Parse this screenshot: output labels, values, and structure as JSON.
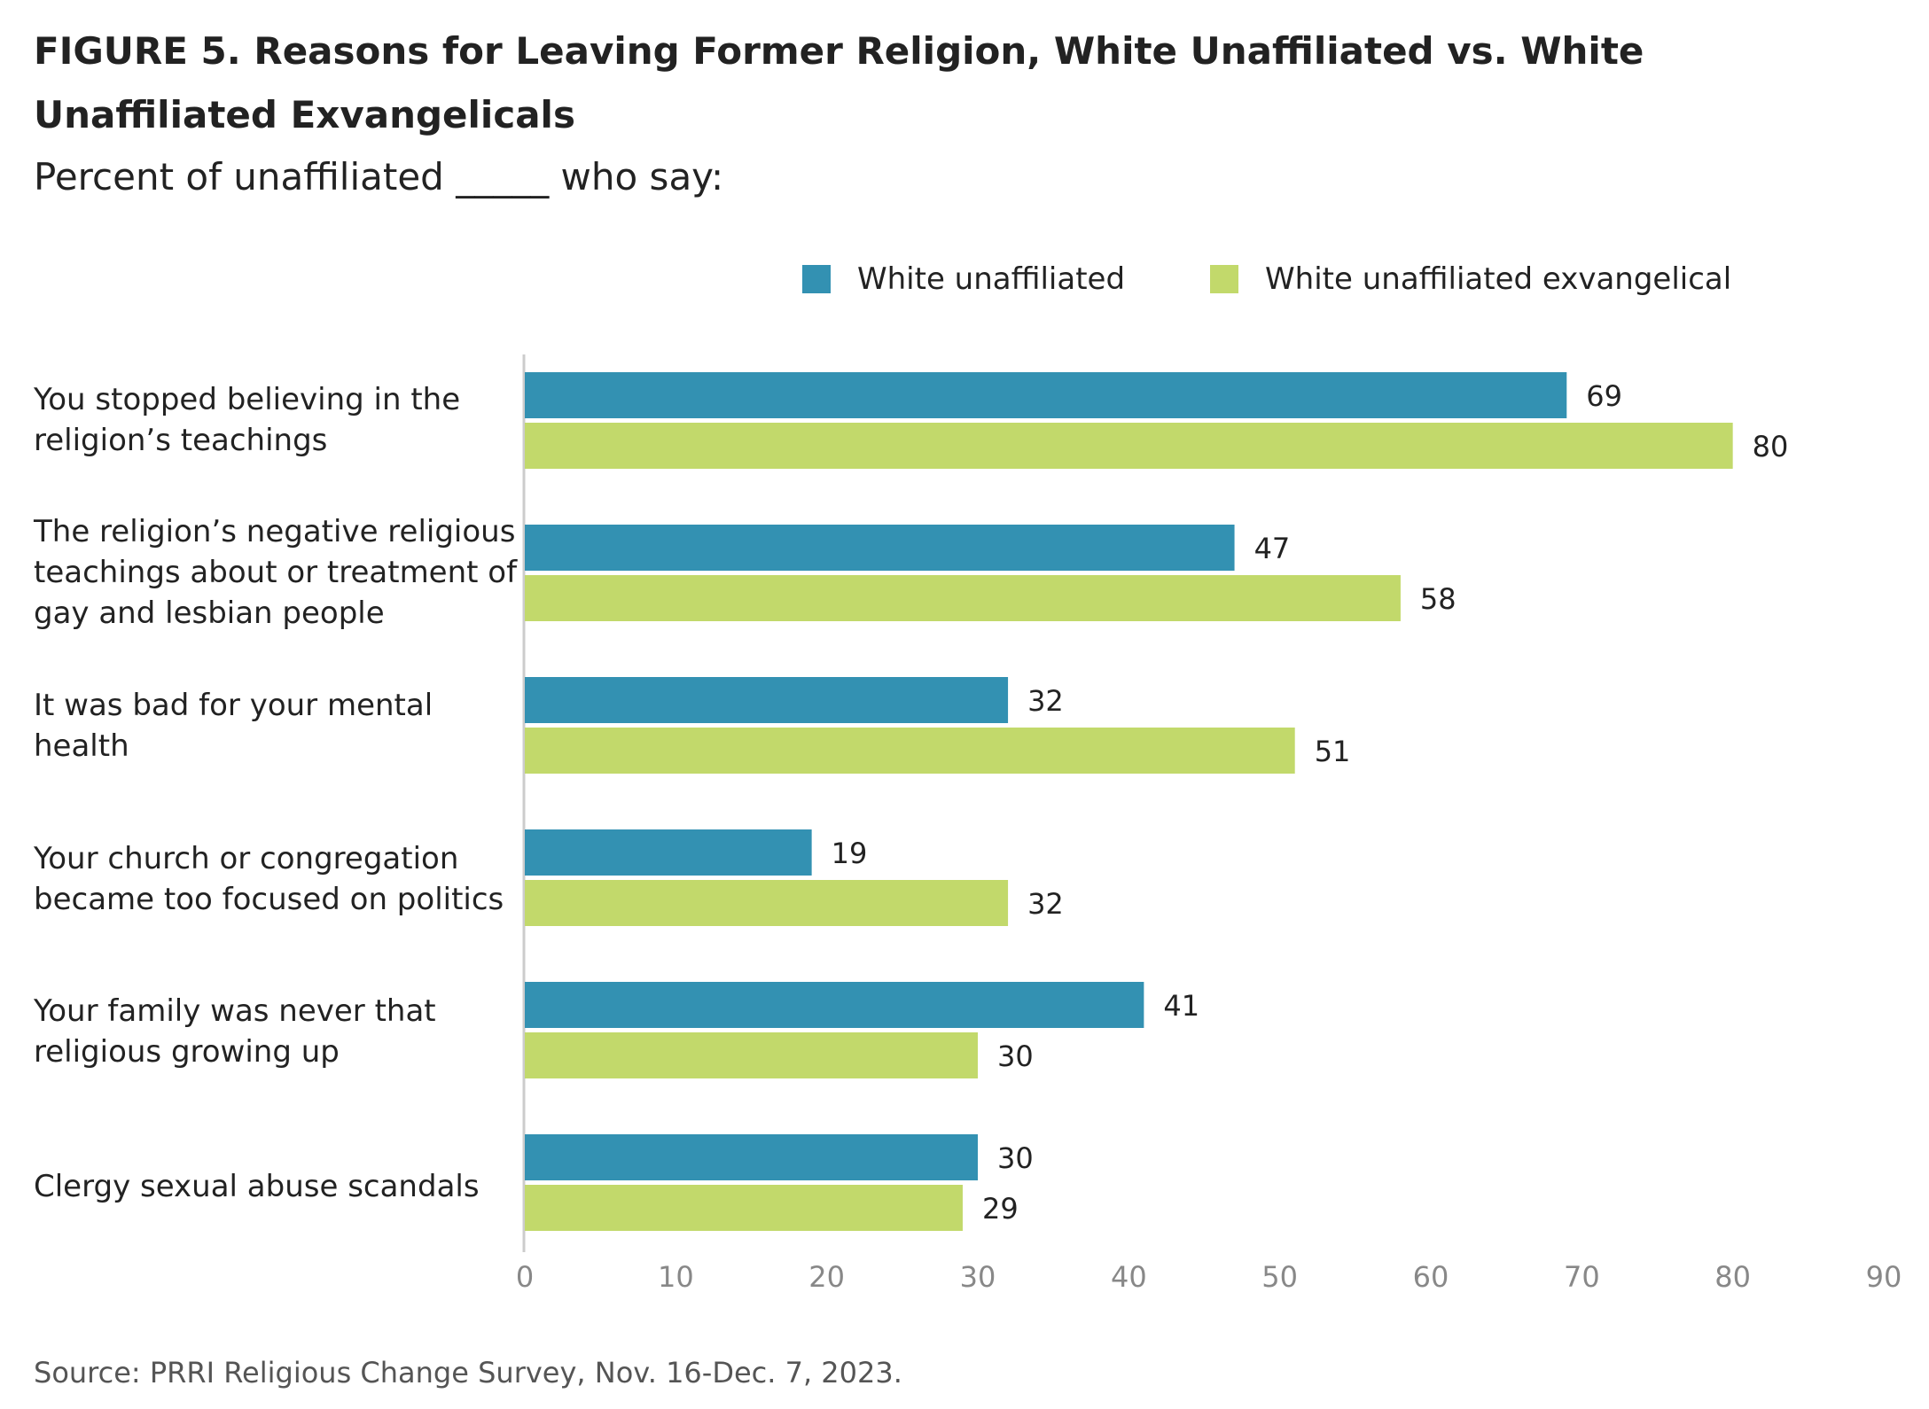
{
  "header": {
    "title": "FIGURE 5. Reasons for Leaving Former Religion, White Unaffiliated vs. White Unaffiliated Exvangelicals",
    "subtitle": "Percent of unaffiliated _____ who say:"
  },
  "legend": {
    "items": [
      {
        "label": "White unaffiliated",
        "color": "#3391B2"
      },
      {
        "label": "White unaffiliated exvangelical",
        "color": "#C2D96B"
      }
    ]
  },
  "category_labels": [
    "You stopped believing in the religion’s teachings",
    "The religion’s negative religious teachings about or treatment of gay and lesbian people",
    "It was bad for your mental health",
    "Your church or congregation became too focused on politics",
    "Your family was never that religious growing up",
    "Clergy sexual abuse scandals"
  ],
  "footer": {
    "source": "Source: PRRI Religious Change Survey, Nov. 16-Dec. 7, 2023."
  },
  "chart_data": {
    "type": "bar",
    "orientation": "horizontal",
    "categories": [
      "You stopped believing in the religion’s teachings",
      "The religion’s negative religious teachings about or treatment of gay and lesbian people",
      "It was bad for your mental health",
      "Your church or congregation became too focused on politics",
      "Your family was never that religious growing up",
      "Clergy sexual abuse scandals"
    ],
    "series": [
      {
        "name": "White unaffiliated",
        "color": "#3391B2",
        "values": [
          69,
          47,
          32,
          19,
          41,
          30
        ]
      },
      {
        "name": "White unaffiliated exvangelical",
        "color": "#C2D96B",
        "values": [
          80,
          58,
          51,
          32,
          30,
          29
        ]
      }
    ],
    "xlim": [
      0,
      90
    ],
    "xticks": [
      0,
      10,
      20,
      30,
      40,
      50,
      60,
      70,
      80,
      90
    ],
    "grid": false,
    "legend_position": "top-right",
    "data_labels": true
  }
}
